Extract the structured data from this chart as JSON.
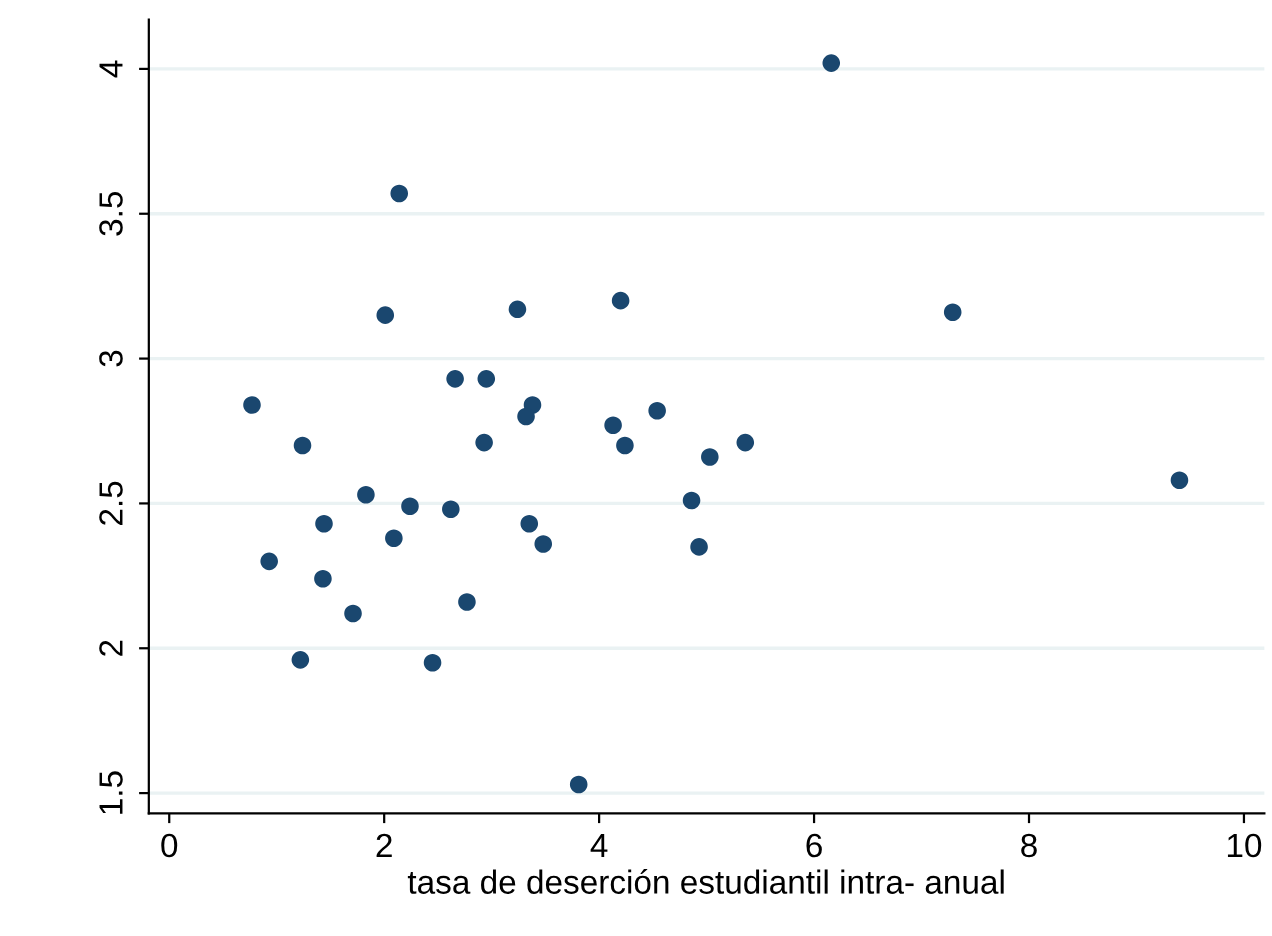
{
  "chart_data": {
    "type": "scatter",
    "xlabel": "tasa de deserción estudiantil intra- anual",
    "series": [
      {
        "color": "#1a476f",
        "x": [
          2.14,
          2.01,
          3.24,
          4.2,
          2.66,
          2.95,
          3.38,
          3.32,
          4.13,
          4.54,
          0.77,
          1.24,
          2.93,
          4.24,
          1.83,
          2.24,
          2.62,
          1.44,
          2.09,
          3.35,
          3.48,
          0.93,
          1.43,
          1.71,
          2.77,
          1.22,
          2.45,
          3.81,
          4.86,
          4.93,
          6.16,
          7.29,
          9.4,
          5.36,
          5.03
        ],
        "values": [
          3.57,
          3.15,
          3.17,
          3.2,
          2.93,
          2.93,
          2.84,
          2.8,
          2.77,
          2.82,
          2.84,
          2.7,
          2.71,
          2.7,
          2.53,
          2.49,
          2.48,
          2.43,
          2.38,
          2.43,
          2.36,
          2.3,
          2.24,
          2.12,
          2.16,
          1.96,
          1.95,
          1.53,
          2.51,
          2.35,
          4.02,
          3.16,
          2.58,
          2.71,
          2.66
        ]
      }
    ],
    "xlim": [
      -0.19,
      10.19
    ],
    "ylim": [
      1.43,
      4.17
    ],
    "xticks": [
      0,
      2,
      4,
      6,
      8,
      10
    ],
    "yticks": [
      1.5,
      2,
      2.5,
      3,
      3.5,
      4
    ],
    "grid": "y",
    "marker": "circle"
  }
}
